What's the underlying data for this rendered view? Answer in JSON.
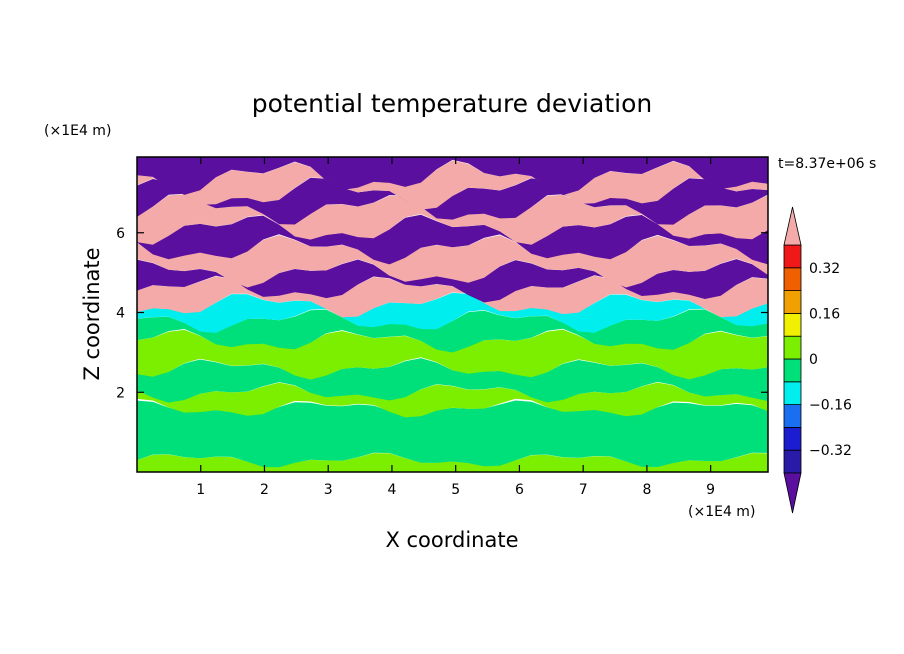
{
  "chart_data": {
    "type": "heatmap",
    "title": "potential temperature deviation",
    "xlabel": "X coordinate",
    "ylabel": "Z coordinate",
    "x_unit": "(×1E4 m)",
    "y_unit": "(×1E4 m)",
    "time_label": "t=8.37e+06 s",
    "xlim": [
      0,
      9.9
    ],
    "ylim": [
      0,
      7.9
    ],
    "x_ticks": [
      1,
      2,
      3,
      4,
      5,
      6,
      7,
      8,
      9
    ],
    "y_ticks": [
      2,
      4,
      6
    ],
    "colorbar": {
      "levels": [
        -0.4,
        -0.32,
        -0.24,
        -0.16,
        -0.08,
        0,
        0.08,
        0.16,
        0.24,
        0.32,
        0.4
      ],
      "labeled_ticks": [
        -0.32,
        -0.16,
        0,
        0.16,
        0.32
      ],
      "tick_labels": [
        "−0.32",
        "−0.16",
        "0",
        "0.16",
        "0.32"
      ],
      "colors": [
        "#5a0f9e",
        "#2a1aa8",
        "#1c1cd0",
        "#1a6ef0",
        "#00eeee",
        "#00e07a",
        "#7cee00",
        "#f0f000",
        "#f0a000",
        "#f06000",
        "#f01818",
        "#f4aaa8"
      ],
      "extend": "both"
    },
    "bands": [
      {
        "z0": 0.0,
        "z1": 0.3,
        "level": 0.04
      },
      {
        "z0": 0.3,
        "z1": 1.6,
        "level": -0.04
      },
      {
        "z0": 1.6,
        "z1": 2.0,
        "level": 0.04
      },
      {
        "z0": 2.0,
        "z1": 2.6,
        "level": -0.04
      },
      {
        "z0": 2.6,
        "z1": 3.3,
        "level": 0.04
      },
      {
        "z0": 3.3,
        "z1": 3.8,
        "level": -0.04
      },
      {
        "z0": 3.8,
        "z1": 4.2,
        "level": -0.12
      },
      {
        "z0": 4.2,
        "z1": 4.6,
        "level": 0.5
      },
      {
        "z0": 4.6,
        "z1": 5.0,
        "level": -0.5
      },
      {
        "z0": 5.0,
        "z1": 5.6,
        "level": 0.5
      },
      {
        "z0": 5.6,
        "z1": 6.1,
        "level": -0.5
      },
      {
        "z0": 6.1,
        "z1": 6.6,
        "level": 0.5
      },
      {
        "z0": 6.6,
        "z1": 7.0,
        "level": -0.5
      },
      {
        "z0": 7.0,
        "z1": 7.4,
        "level": 0.5
      },
      {
        "z0": 7.4,
        "z1": 7.9,
        "level": -0.5
      }
    ]
  }
}
